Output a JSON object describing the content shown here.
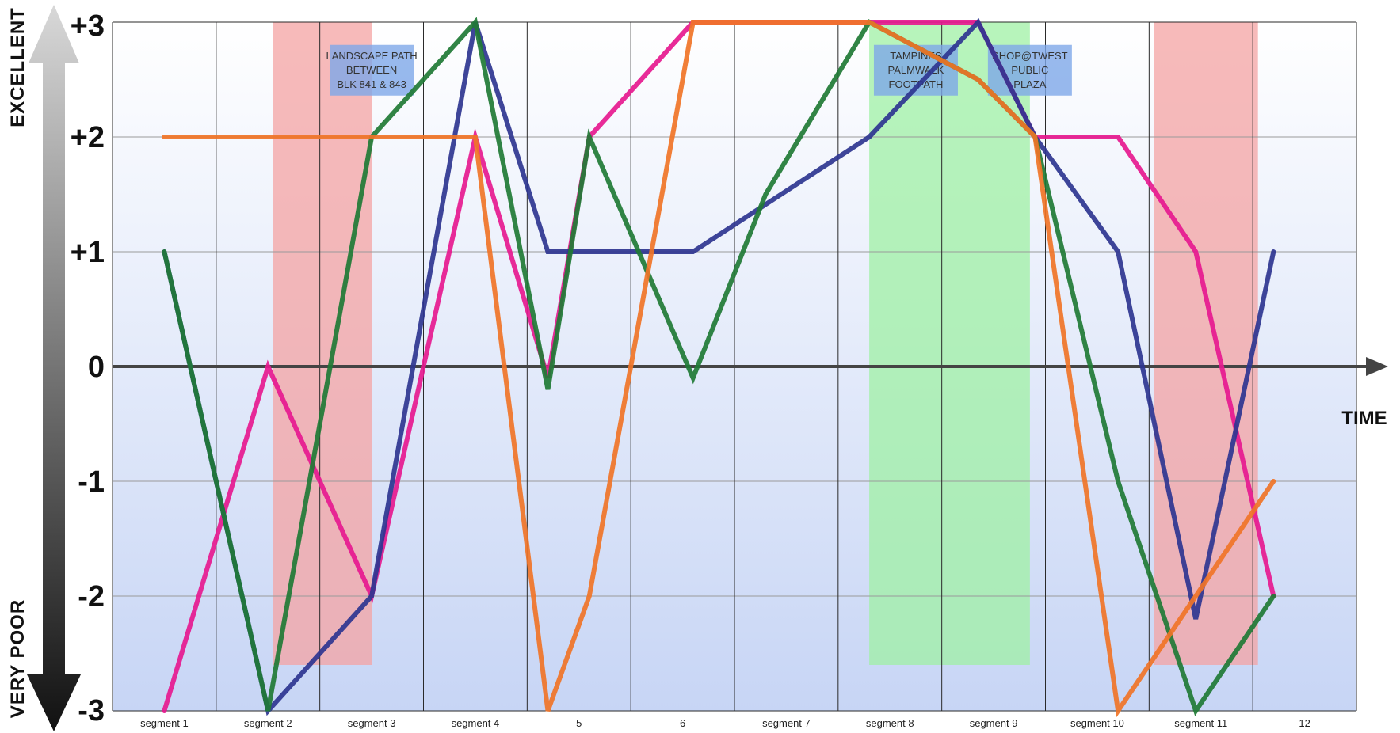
{
  "chart_data": {
    "type": "line",
    "y_axis": {
      "ylim": [
        -3,
        3
      ],
      "tick_labels": [
        "+3",
        "+2",
        "+1",
        "0",
        "-1",
        "-2",
        "-3"
      ],
      "tick_values": [
        3,
        2,
        1,
        0,
        -1,
        -2,
        -3
      ],
      "top_label": "EXCELLENT",
      "bottom_label": "VERY POOR"
    },
    "x_axis": {
      "label": "TIME",
      "segments": [
        "segment 1",
        "segment 2",
        "segment 3",
        "segment 4",
        "5",
        "6",
        "segment 7",
        "segment 8",
        "segment 9",
        "segment 10",
        "segment 11",
        "12"
      ],
      "boundaries": [
        0,
        1,
        2,
        3,
        4,
        5,
        6,
        7,
        8,
        9,
        10,
        11,
        12
      ]
    },
    "grid": true,
    "highlights": [
      {
        "x0": 1.55,
        "x1": 2.5,
        "y0": -2.6,
        "y1": 3,
        "color": "#f4a3a3",
        "kind": "negative"
      },
      {
        "x0": 7.3,
        "x1": 8.85,
        "y0": -2.6,
        "y1": 3,
        "color": "#9ff0a4",
        "kind": "positive"
      },
      {
        "x0": 10.05,
        "x1": 11.05,
        "y0": -2.6,
        "y1": 3,
        "color": "#f4a3a3",
        "kind": "negative"
      }
    ],
    "annotations": [
      {
        "lines": [
          "LANDSCAPE PATH",
          "BETWEEN",
          "BLK 841 & 843"
        ],
        "x": 2.5,
        "y": 2.65
      },
      {
        "lines": [
          "TAMPINES",
          "PALMWALK",
          "FOOTPATH"
        ],
        "x": 7.75,
        "y": 2.65
      },
      {
        "lines": [
          "SHOP@TWEST",
          "PUBLIC",
          "PLAZA"
        ],
        "x": 8.85,
        "y": 2.65
      }
    ],
    "series": [
      {
        "color": "#e6198f",
        "x": [
          0.5,
          1.5,
          2.5,
          3.5,
          4.2,
          4.6,
          5.6,
          6.3,
          6.8,
          8.35,
          8.9,
          9.7,
          10.45,
          11.2
        ],
        "y": [
          -3,
          0,
          -2,
          2,
          -0.1,
          2,
          3,
          3,
          3,
          3,
          2,
          2,
          1,
          -2
        ]
      },
      {
        "color": "#2e3590",
        "x": [
          0.5,
          1.5,
          2.5,
          3.5,
          4.2,
          4.6,
          5.6,
          7.3,
          8.35,
          8.9,
          9.7,
          10.45,
          11.2
        ],
        "y": [
          1,
          -3,
          -2,
          3,
          1,
          1,
          1,
          2,
          3,
          2,
          1,
          -2.2,
          1
        ]
      },
      {
        "color": "#1f7a35",
        "x": [
          0.5,
          1.5,
          2.5,
          3.5,
          4.2,
          4.6,
          5.6,
          6.3,
          7.3,
          8.35,
          8.9,
          9.7,
          10.45,
          11.2
        ],
        "y": [
          1,
          -3,
          2,
          3,
          -0.2,
          2,
          -0.1,
          1.5,
          3,
          2.5,
          2,
          -1,
          -3,
          -2
        ]
      },
      {
        "color": "#f07427",
        "x": [
          0.5,
          1.5,
          2.5,
          3.5,
          4.2,
          4.6,
          5.6,
          6.3,
          7.3,
          8.35,
          8.9,
          9.7,
          10.45,
          11.2
        ],
        "y": [
          2,
          2,
          2,
          2,
          -3,
          -2,
          3,
          3,
          3,
          2.5,
          2,
          -3,
          -2,
          -1
        ]
      }
    ]
  }
}
